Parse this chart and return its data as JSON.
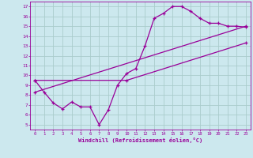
{
  "xlabel": "Windchill (Refroidissement éolien,°C)",
  "ylabel": "",
  "bg_color": "#cce8ee",
  "line_color": "#990099",
  "grid_color": "#aacccc",
  "xlim": [
    -0.5,
    23.5
  ],
  "ylim": [
    4.5,
    17.5
  ],
  "xticks": [
    0,
    1,
    2,
    3,
    4,
    5,
    6,
    7,
    8,
    9,
    10,
    11,
    12,
    13,
    14,
    15,
    16,
    17,
    18,
    19,
    20,
    21,
    22,
    23
  ],
  "yticks": [
    5,
    6,
    7,
    8,
    9,
    10,
    11,
    12,
    13,
    14,
    15,
    16,
    17
  ],
  "line1_x": [
    0,
    1,
    2,
    3,
    4,
    5,
    6,
    7,
    8,
    9,
    10,
    11,
    12,
    13,
    14,
    15,
    16,
    17,
    18,
    19,
    20,
    21,
    22,
    23
  ],
  "line1_y": [
    9.5,
    8.3,
    7.2,
    6.6,
    7.3,
    6.8,
    6.8,
    5.0,
    6.5,
    9.0,
    10.2,
    10.7,
    13.0,
    15.8,
    16.3,
    17.0,
    17.0,
    16.5,
    15.8,
    15.3,
    15.3,
    15.0,
    15.0,
    14.9
  ],
  "line2_x": [
    0,
    10,
    23
  ],
  "line2_y": [
    9.5,
    9.5,
    13.3
  ],
  "line3_x": [
    0,
    23
  ],
  "line3_y": [
    8.3,
    15.0
  ]
}
